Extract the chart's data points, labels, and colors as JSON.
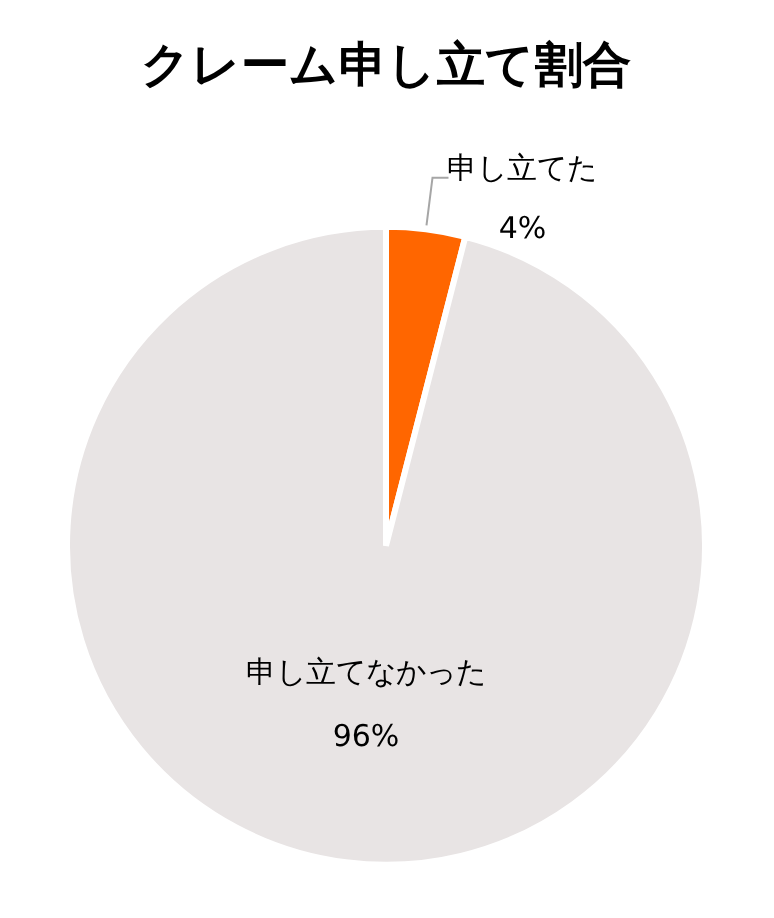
{
  "chart_data": {
    "type": "pie",
    "title": "クレーム申し立て割合",
    "categories": [
      "申し立てた",
      "申し立てなかった"
    ],
    "values": [
      4,
      96
    ],
    "value_labels": [
      "4%",
      "96%"
    ],
    "colors": [
      "#ff6600",
      "#e8e4e4"
    ]
  }
}
